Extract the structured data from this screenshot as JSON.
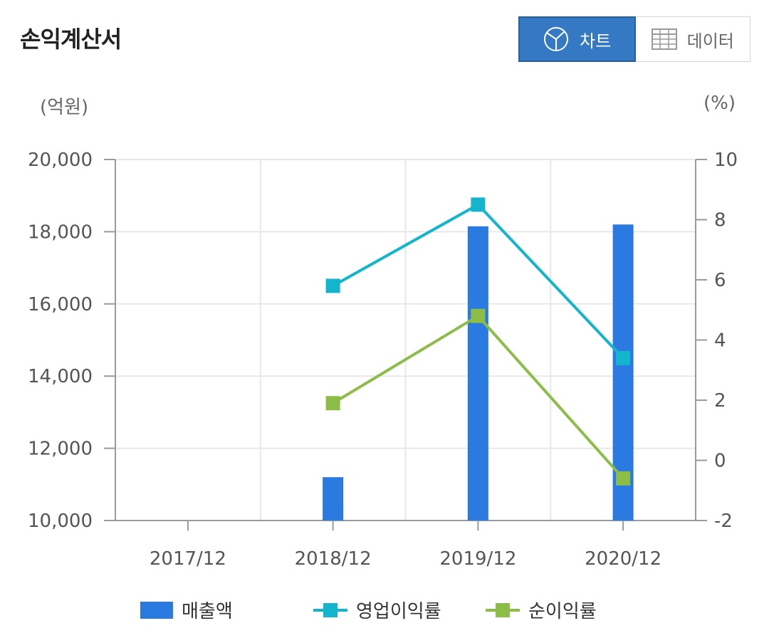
{
  "title": "손익계산서",
  "toggle": {
    "chart_label": "차트",
    "data_label": "데이터",
    "active": "chart"
  },
  "units": {
    "left": "(억원)",
    "right": "(%)"
  },
  "colors": {
    "bar": "#2a7ae2",
    "op_margin": "#13b5cc",
    "net_margin": "#8bbd47",
    "accent": "#3578c3"
  },
  "chart_data": {
    "type": "bar",
    "title": "",
    "categories": [
      "2017/12",
      "2018/12",
      "2019/12",
      "2020/12"
    ],
    "ylim": [
      10000,
      20000
    ],
    "y_ticks": [
      "10,000",
      "12,000",
      "14,000",
      "16,000",
      "18,000",
      "20,000"
    ],
    "y2lim": [
      -2,
      10
    ],
    "y2_ticks": [
      "-2",
      "0",
      "2",
      "4",
      "6",
      "8",
      "10"
    ],
    "grid": true,
    "legend_position": "bottom",
    "series": [
      {
        "name": "매출액",
        "type": "bar",
        "axis": "left",
        "values": [
          null,
          11200,
          18150,
          18200
        ]
      },
      {
        "name": "영업이익률",
        "type": "line",
        "axis": "right",
        "values": [
          null,
          5.8,
          8.5,
          3.4
        ]
      },
      {
        "name": "순이익률",
        "type": "line",
        "axis": "right",
        "values": [
          null,
          1.9,
          4.8,
          -0.6
        ]
      }
    ]
  }
}
